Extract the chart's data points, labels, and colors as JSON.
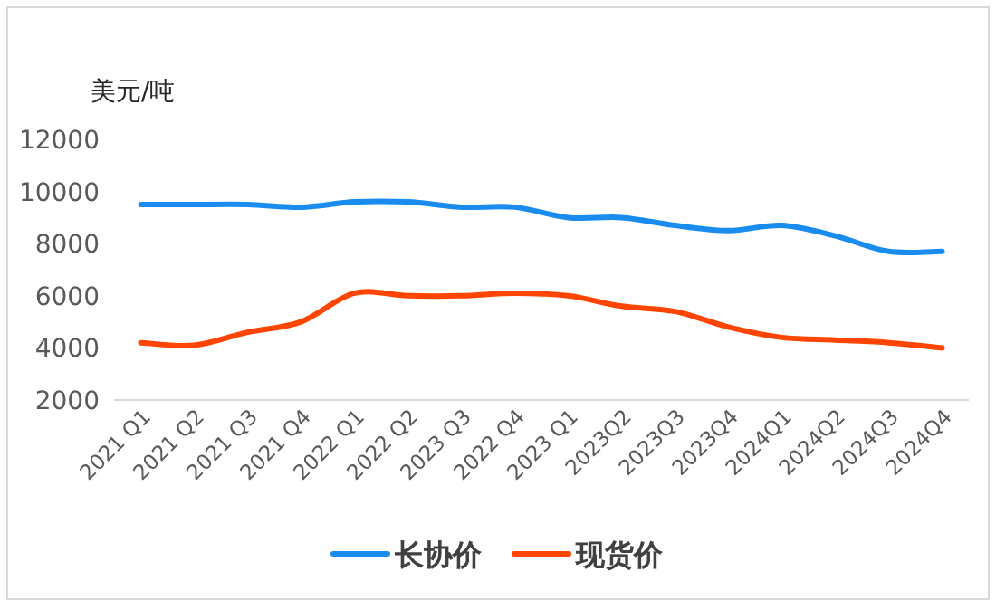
{
  "chart_data": {
    "type": "line",
    "ylabel": "美元/吨",
    "categories": [
      "2021 Q1",
      "2021 Q2",
      "2021 Q3",
      "2021 Q4",
      "2022 Q1",
      "2022 Q2",
      "2023 Q3",
      "2022 Q4",
      "2023 Q1",
      "2023Q2",
      "2023Q3",
      "2023Q4",
      "2024Q1",
      "2024Q2",
      "2024Q3",
      "2024Q4"
    ],
    "series": [
      {
        "name": "长协价",
        "color": "#1a8cf0",
        "values": [
          9500,
          9500,
          9500,
          9400,
          9600,
          9600,
          9400,
          9400,
          9000,
          9000,
          8700,
          8500,
          8700,
          8300,
          7700,
          7700
        ]
      },
      {
        "name": "现货价",
        "color": "#ff4500",
        "values": [
          4200,
          4100,
          4600,
          5000,
          6100,
          6000,
          6000,
          6100,
          6000,
          5600,
          5400,
          4800,
          4400,
          4300,
          4200,
          4000
        ]
      }
    ],
    "ylim": [
      2000,
      12000
    ],
    "yticks": [
      2000,
      4000,
      6000,
      8000,
      10000,
      12000
    ],
    "grid": false,
    "legend": "bottom",
    "marker": "none",
    "line_style": "solid"
  }
}
